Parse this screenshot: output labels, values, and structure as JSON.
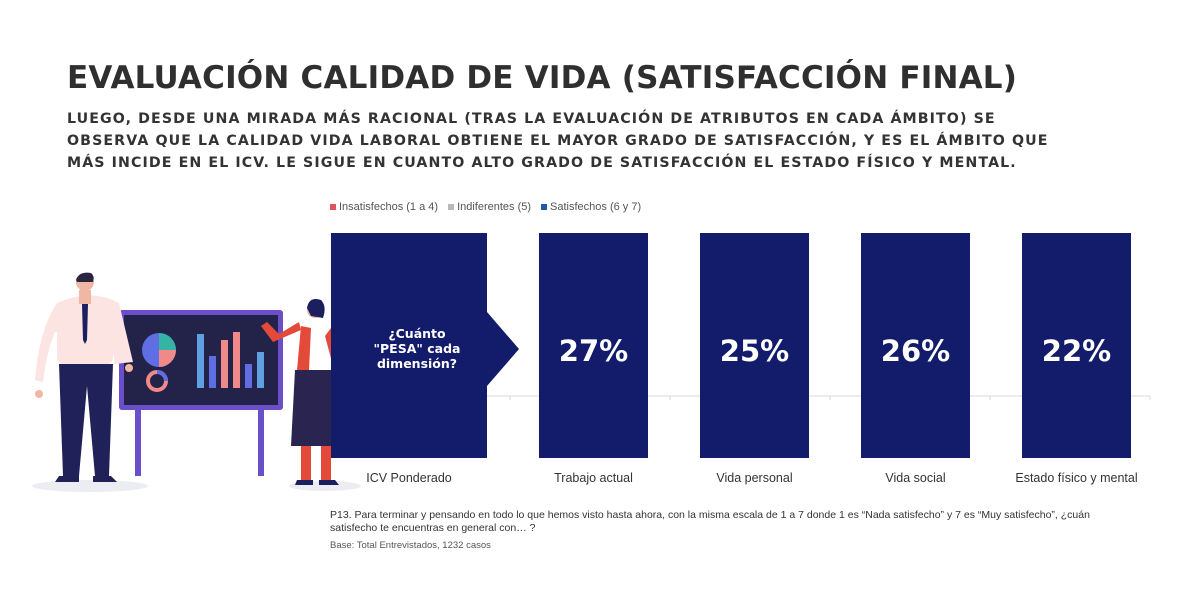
{
  "title": "EVALUACIÓN CALIDAD DE VIDA (SATISFACCIÓN FINAL)",
  "subtitle": "LUEGO, DESDE UNA MIRADA MÁS RACIONAL (TRAS LA EVALUACIÓN DE ATRIBUTOS EN CADA ÁMBITO) SE OBSERVA QUE LA CALIDAD VIDA LABORAL OBTIENE EL MAYOR GRADO DE SATISFACCIÓN, Y ES EL ÁMBITO QUE MÁS INCIDE EN EL ICV. LE SIGUE EN CUANTO ALTO GRADO DE SATISFACCIÓN EL ESTADO FÍSICO Y MENTAL.",
  "legend": [
    {
      "label": "Insatisfechos (1 a 4)",
      "color": "#e0555a"
    },
    {
      "label": "Indiferentes (5)",
      "color": "#b9b9b9"
    },
    {
      "label": "Satisfechos (6 y 7)",
      "color": "#1e5aa8"
    }
  ],
  "colors": {
    "bar": "#131b6b",
    "bar_text": "#ffffff",
    "axis": "#d9d9d9"
  },
  "chart_data": {
    "type": "bar",
    "categories": [
      "ICV Ponderado",
      "Trabajo actual",
      "Vida personal",
      "Vida social",
      "Estado físico y mental"
    ],
    "callout": "¿Cuánto \"PESA\" cada dimensión?",
    "callout_lines": [
      "¿Cuánto",
      "\"PESA\" cada",
      "dimensión?"
    ],
    "values": [
      null,
      27,
      25,
      26,
      22
    ],
    "value_labels": [
      "",
      "27%",
      "25%",
      "26%",
      "22%"
    ],
    "series": [
      {
        "name": "Satisfechos (6 y 7)",
        "values": [
          null,
          27,
          25,
          26,
          22
        ]
      }
    ],
    "grid": false,
    "legend_position": "top-left"
  },
  "footnote": {
    "question": "P13. Para terminar y pensando en todo lo que hemos visto hasta ahora, con la misma escala de 1 a 7 donde 1 es “Nada satisfecho” y 7 es “Muy satisfecho”, ¿cuán satisfecho te encuentras en general con… ?",
    "base": "Base: Total Entrevistados, 1232 casos"
  }
}
